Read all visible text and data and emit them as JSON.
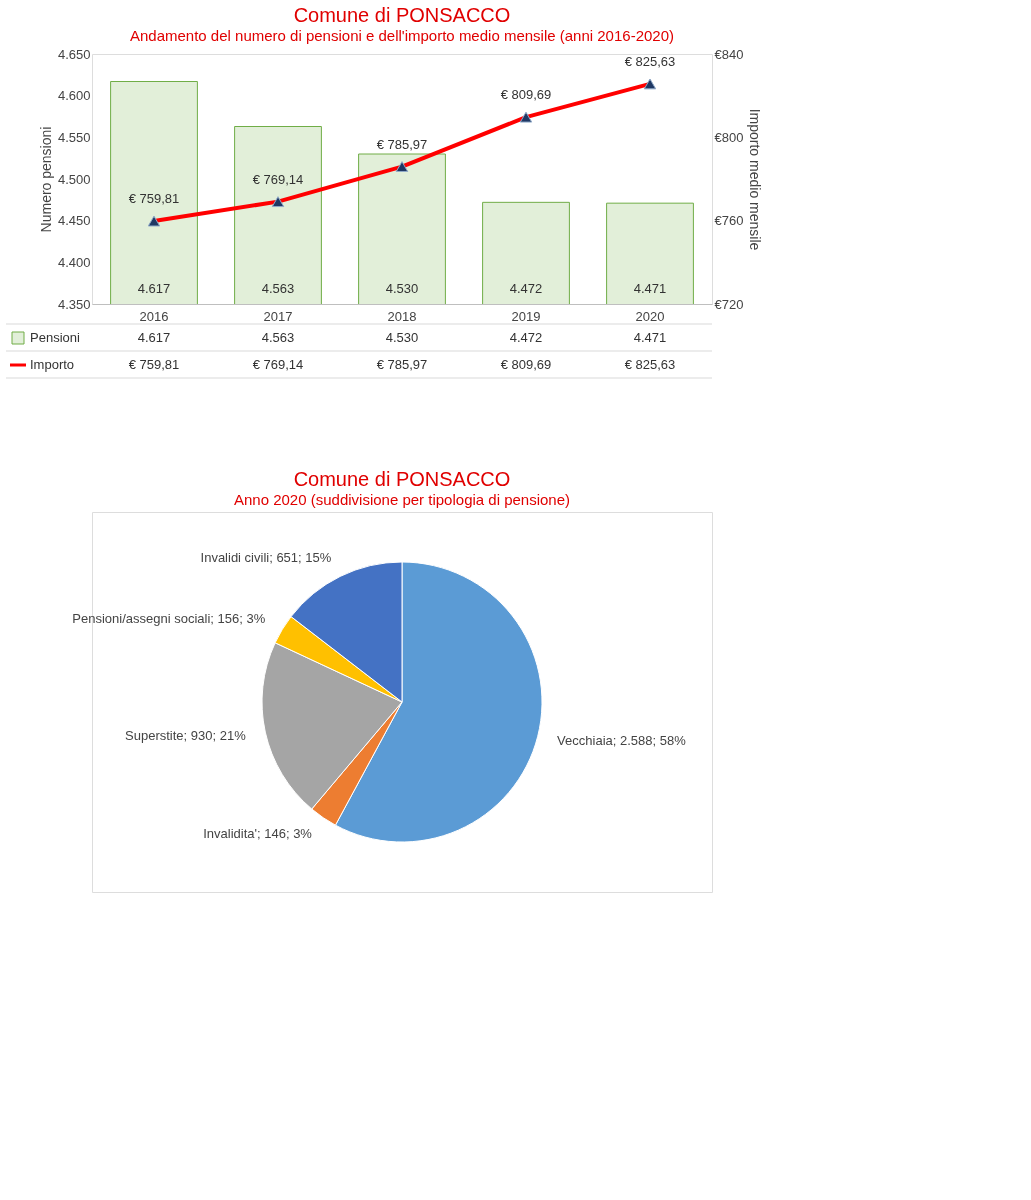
{
  "chart_data": [
    {
      "type": "bar",
      "title": "Comune di PONSACCO",
      "subtitle": "Andamento del numero di pensioni e dell'importo medio mensile (anni 2016-2020)",
      "ylabel": "Numero pensioni",
      "y2label": "Importo medio mensile",
      "categories": [
        "2016",
        "2017",
        "2018",
        "2019",
        "2020"
      ],
      "series": [
        {
          "name": "Pensioni",
          "type": "bar",
          "color": "#e2efd9",
          "values": [
            4617,
            4563,
            4530,
            4472,
            4471
          ],
          "value_labels": [
            "4.617",
            "4.563",
            "4.530",
            "4.472",
            "4.471"
          ]
        },
        {
          "name": "Importo",
          "type": "line",
          "axis": "y2",
          "color": "#ff0000",
          "marker": "triangle",
          "line_style": "solid",
          "values": [
            759.81,
            769.14,
            785.97,
            809.69,
            825.63
          ],
          "value_labels": [
            "€ 759,81",
            "€ 769,14",
            "€ 785,97",
            "€ 809,69",
            "€ 825,63"
          ]
        }
      ],
      "ylim": [
        4350,
        4650
      ],
      "yticks": [
        {
          "value": 4350,
          "label": "4.350"
        },
        {
          "value": 4400,
          "label": "4.400"
        },
        {
          "value": 4450,
          "label": "4.450"
        },
        {
          "value": 4500,
          "label": "4.500"
        },
        {
          "value": 4550,
          "label": "4.550"
        },
        {
          "value": 4600,
          "label": "4.600"
        },
        {
          "value": 4650,
          "label": "4.650"
        }
      ],
      "legend": "bottom",
      "y2lim": [
        720,
        840
      ],
      "y2ticks": [
        {
          "value": 720,
          "label": "€720"
        },
        {
          "value": 760,
          "label": "€760"
        },
        {
          "value": 800,
          "label": "€800"
        },
        {
          "value": 840,
          "label": "€840"
        }
      ],
      "grid": false
    },
    {
      "type": "pie",
      "title": "Comune di PONSACCO",
      "subtitle": "Anno 2020 (suddivisione per tipologia di pensione)",
      "categories": [
        "Vecchiaia",
        "Invalidita'",
        "Superstite",
        "Pensioni/assegni sociali",
        "Invalidi civili"
      ],
      "values": [
        2588,
        146,
        930,
        156,
        651
      ],
      "colors": [
        "#5b9bd5",
        "#ed7d31",
        "#a5a5a5",
        "#ffc000",
        "#4472c4"
      ],
      "value_labels": [
        "2.588; 58%",
        "146; 3%",
        "930; 21%",
        "156; 3%",
        "651; 15%"
      ]
    }
  ]
}
